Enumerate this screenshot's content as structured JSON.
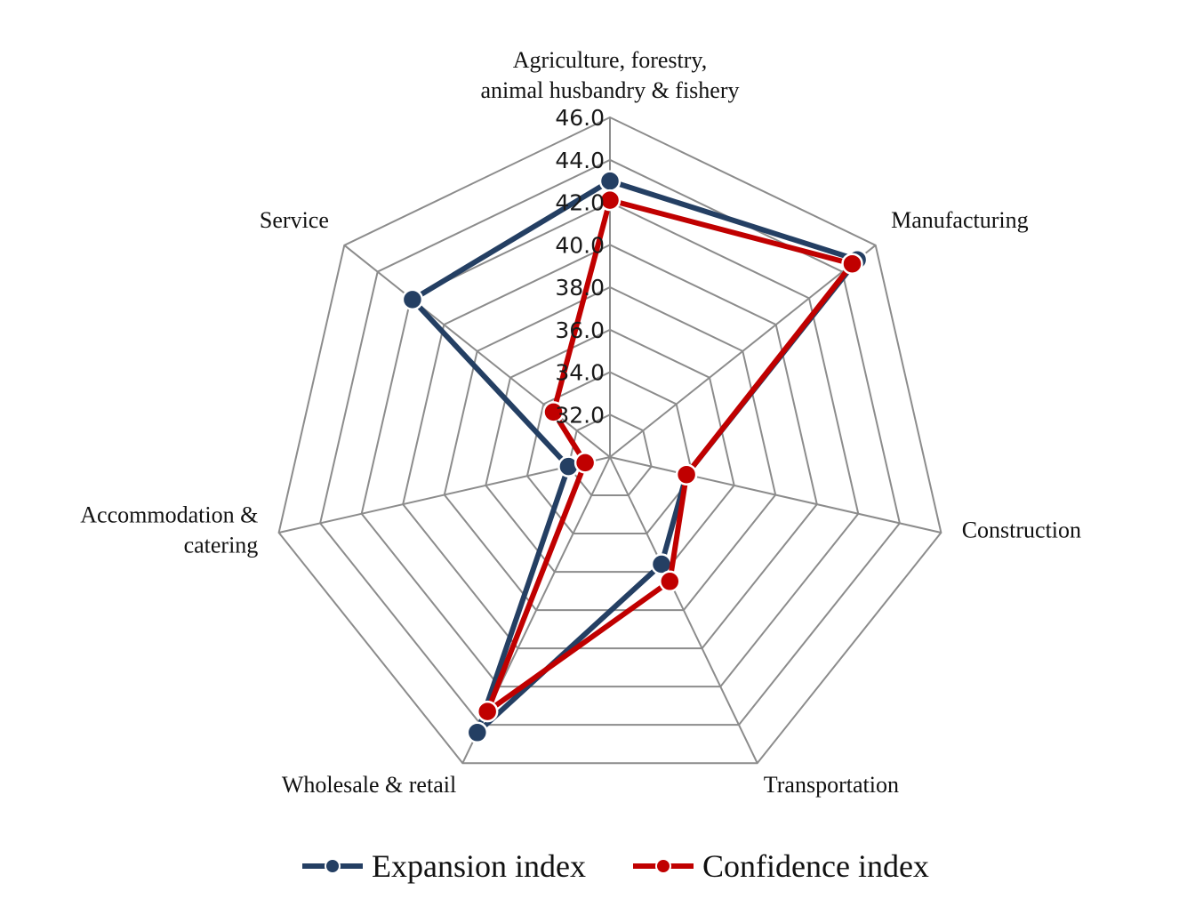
{
  "chart_data": {
    "type": "radar",
    "categories": [
      [
        "Agriculture, forestry,",
        "animal husbandry & fishery"
      ],
      [
        "Manufacturing"
      ],
      [
        "Construction"
      ],
      [
        "Transportation"
      ],
      [
        "Wholesale & retail"
      ],
      [
        "Accommodation &",
        "catering"
      ],
      [
        "Service"
      ]
    ],
    "rlim": [
      30.0,
      46.0
    ],
    "ticks": [
      "32.0",
      "34.0",
      "36.0",
      "38.0",
      "40.0",
      "42.0",
      "44.0",
      "46.0"
    ],
    "tick_values": [
      32,
      34,
      36,
      38,
      40,
      42,
      44,
      46
    ],
    "grid": true,
    "legend_position": "bottom",
    "series": [
      {
        "name": "Expansion index",
        "color": "#243f63",
        "values": [
          43.0,
          44.9,
          33.7,
          35.6,
          44.4,
          32.0,
          41.9
        ]
      },
      {
        "name": "Confidence index",
        "color": "#c00000",
        "values": [
          42.1,
          44.6,
          33.7,
          36.5,
          43.3,
          31.2,
          33.4
        ]
      }
    ]
  }
}
